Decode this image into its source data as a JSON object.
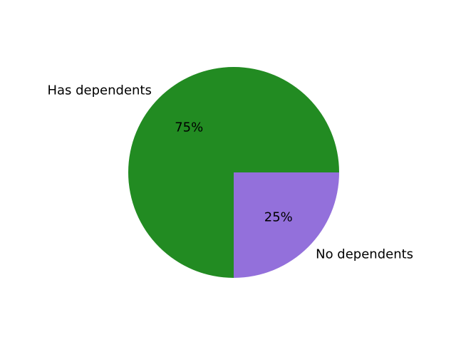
{
  "chart_data": {
    "type": "pie",
    "title": "",
    "categories": [
      "Has dependents",
      "No dependents"
    ],
    "values": [
      75,
      25
    ],
    "percent_labels": [
      "75%",
      "25%"
    ],
    "colors": [
      "#228b22",
      "#9370db"
    ],
    "start_angle_deg": 0,
    "direction": "counterclockwise",
    "legend": "none"
  }
}
